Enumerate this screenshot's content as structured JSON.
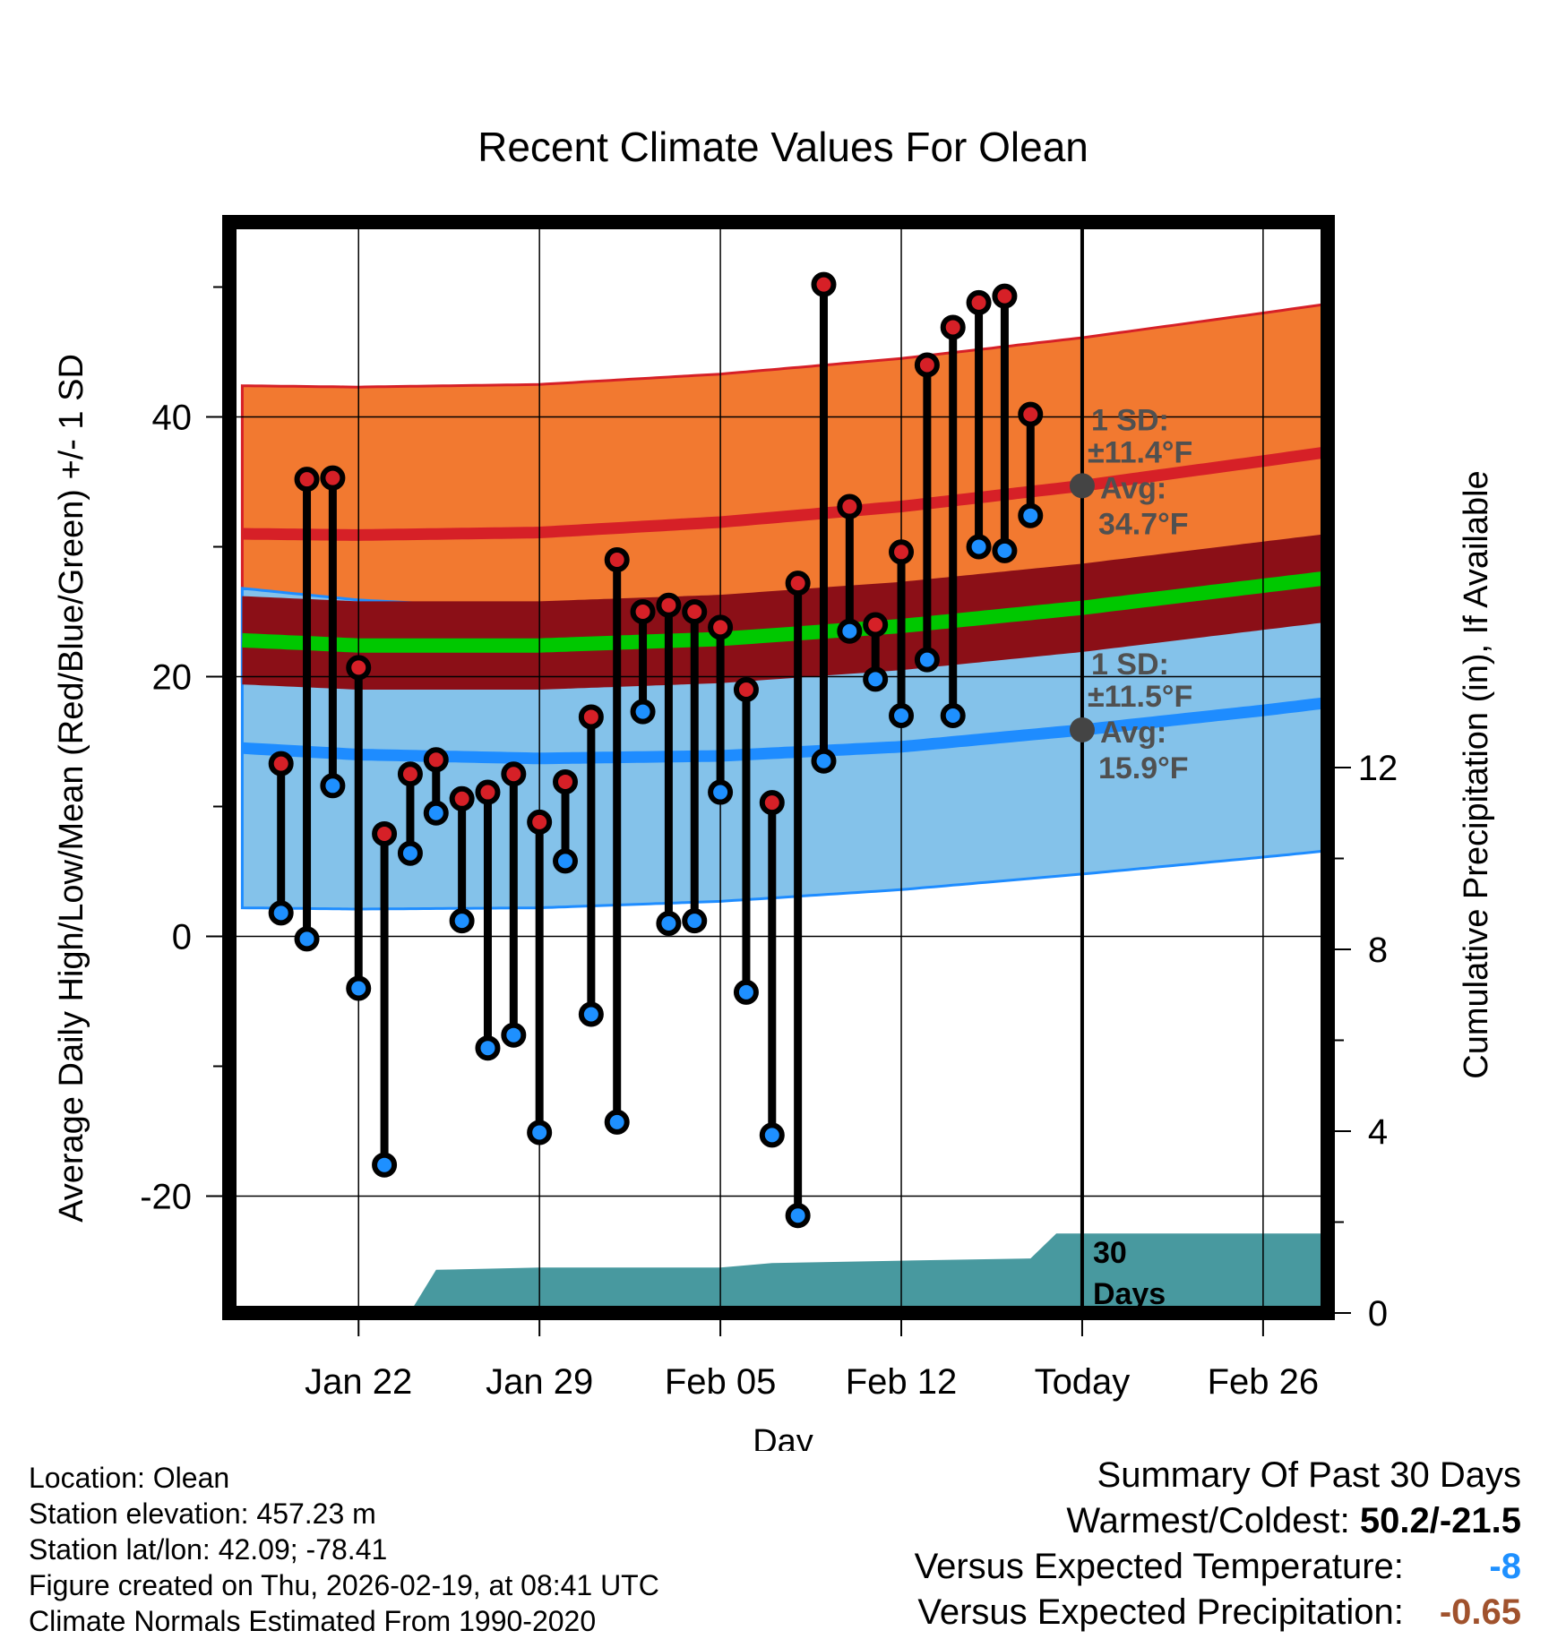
{
  "chart_data": {
    "type": "climate-range",
    "title": "Recent Climate Values For Olean",
    "xlabel": "Day",
    "ylabel_left": "Average Daily High/Low/Mean (Red/Blue/Green) +/- 1 SD",
    "ylabel_right": "Cumulative Precipitation (in), If Available",
    "x_range_days": [
      -33,
      9.5
    ],
    "y_left_range": [
      -29,
      55
    ],
    "y_right_range": [
      0,
      24
    ],
    "x_ticks": [
      {
        "day": -28,
        "label": "Jan 22"
      },
      {
        "day": -21,
        "label": "Jan 29"
      },
      {
        "day": -14,
        "label": "Feb 05"
      },
      {
        "day": -7,
        "label": "Feb 12"
      },
      {
        "day": 0,
        "label": "Today"
      },
      {
        "day": 7,
        "label": "Feb 26"
      }
    ],
    "y_left_ticks": [
      -20,
      0,
      20,
      40
    ],
    "y_right_ticks": [
      0,
      4,
      8,
      12
    ],
    "normal_days": [
      -32.5,
      -28,
      -21,
      -14,
      -7,
      0,
      7,
      9.5
    ],
    "normal_high": [
      31.0,
      30.9,
      31.1,
      31.9,
      33.1,
      34.7,
      36.6,
      37.3
    ],
    "normal_high_upper": [
      42.4,
      42.3,
      42.5,
      43.3,
      44.5,
      46.1,
      48.0,
      48.7
    ],
    "normal_low": [
      14.5,
      14.0,
      13.7,
      13.9,
      14.6,
      15.9,
      17.4,
      18.0
    ],
    "normal_low_lower": [
      2.2,
      2.1,
      2.2,
      2.7,
      3.6,
      4.8,
      6.1,
      6.6
    ],
    "normal_mean": [
      22.8,
      22.4,
      22.4,
      22.9,
      23.9,
      25.3,
      27.0,
      27.6
    ],
    "normal_mean_sd": [
      3.4,
      3.4,
      3.4,
      3.4,
      3.4,
      3.4,
      3.4,
      3.4
    ],
    "obs_start_day": -31,
    "obs_high": [
      13.3,
      35.2,
      35.3,
      20.7,
      7.9,
      12.5,
      13.6,
      10.6,
      11.1,
      12.5,
      8.8,
      11.9,
      16.9,
      29.0,
      25.0,
      25.5,
      25.0,
      23.8,
      19.0,
      10.3,
      27.2,
      50.2,
      33.1,
      24.0,
      29.6,
      44.0,
      46.9,
      48.8,
      49.3,
      40.2
    ],
    "obs_low": [
      1.8,
      -0.2,
      11.6,
      -4.0,
      -17.6,
      6.4,
      9.5,
      1.2,
      -8.6,
      -7.6,
      -15.1,
      5.8,
      -6.0,
      -14.3,
      17.3,
      1.0,
      1.2,
      11.1,
      -4.3,
      -15.3,
      -21.5,
      13.5,
      23.5,
      19.8,
      17.0,
      21.3,
      17.0,
      30.0,
      29.7,
      32.4
    ],
    "precip_cumulative": [
      {
        "day": -32.5,
        "value": 0.0
      },
      {
        "day": -27,
        "value": 0.0
      },
      {
        "day": -26,
        "value": 0.02
      },
      {
        "day": -25,
        "value": 0.95
      },
      {
        "day": -21,
        "value": 1.0
      },
      {
        "day": -14,
        "value": 1.0
      },
      {
        "day": -12,
        "value": 1.1
      },
      {
        "day": -7,
        "value": 1.15
      },
      {
        "day": -2,
        "value": 1.2
      },
      {
        "day": -1,
        "value": 1.75
      },
      {
        "day": 9.5,
        "value": 1.75
      }
    ],
    "annotations": {
      "high_sd": "1 SD:",
      "high_sd_val": "±11.4°F",
      "high_avg": "Avg:",
      "high_avg_val": "34.7°F",
      "low_sd": "1 SD:",
      "low_sd_val": "±11.5°F",
      "low_avg": "Avg:",
      "low_avg_val": "15.9°F",
      "days_num": "30",
      "days_word": "Days"
    },
    "colors": {
      "high_band": "#f27930",
      "high_line": "#d62027",
      "mean_band": "#8b0f17",
      "mean_line": "#00c800",
      "low_band": "#84c2ea",
      "low_line": "#1e8cff",
      "precip": "#48999f",
      "high_marker": "#d62027",
      "low_marker": "#1e90ff",
      "annotation": "#505050"
    }
  },
  "footer": {
    "location": "Location: Olean",
    "elevation": "Station elevation: 457.23 m",
    "latlon": "Station lat/lon: 42.09; -78.41",
    "created": "Figure created on Thu, 2026-02-19, at 08:41 UTC",
    "normals": "Climate Normals Estimated From 1990-2020"
  },
  "summary": {
    "title": "Summary Of Past 30 Days",
    "warm_cold_label": "Warmest/Coldest:",
    "warm_cold_value": "50.2/-21.5",
    "temp_label": "Versus Expected Temperature:",
    "temp_value": "-8",
    "temp_color": "#1e90ff",
    "precip_label": "Versus Expected Precipitation:",
    "precip_value": "-0.65",
    "precip_color": "#a0522d"
  }
}
